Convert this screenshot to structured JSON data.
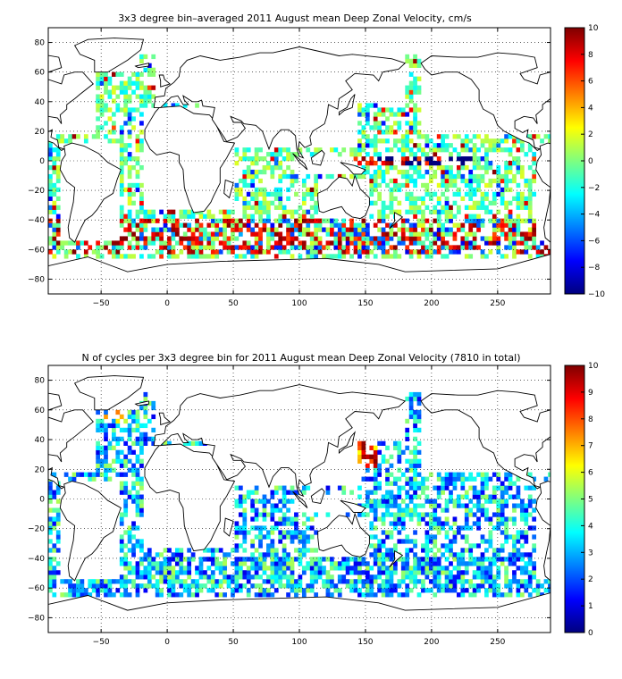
{
  "chart_data": [
    {
      "type": "heatmap",
      "title": "3x3 degree bin–averaged 2011 August mean Deep Zonal Velocity, cm/s",
      "xlim": [
        -90,
        290
      ],
      "ylim": [
        -90,
        90
      ],
      "xticks": [
        -50,
        0,
        50,
        100,
        150,
        200,
        250
      ],
      "yticks": [
        -80,
        -60,
        -40,
        -20,
        0,
        20,
        40,
        60,
        80
      ],
      "grid": true,
      "colorbar": {
        "range": [
          -10,
          10
        ],
        "ticks": [
          -10,
          -8,
          -6,
          -4,
          -2,
          0,
          2,
          4,
          6,
          8,
          10
        ],
        "colormap": "jet"
      },
      "bin_size_deg": 3
    },
    {
      "type": "heatmap",
      "title": "N of cycles per 3x3 degree bin for 2011 August mean Deep Zonal Velocity (7810 in total)",
      "xlim": [
        -90,
        290
      ],
      "ylim": [
        -90,
        90
      ],
      "xticks": [
        -50,
        0,
        50,
        100,
        150,
        200,
        250
      ],
      "yticks": [
        -80,
        -60,
        -40,
        -20,
        0,
        20,
        40,
        60,
        80
      ],
      "grid": true,
      "colorbar": {
        "range": [
          0,
          10
        ],
        "ticks": [
          0,
          1,
          2,
          3,
          4,
          5,
          6,
          7,
          8,
          9,
          10
        ],
        "colormap": "jet"
      },
      "bin_size_deg": 3
    }
  ]
}
